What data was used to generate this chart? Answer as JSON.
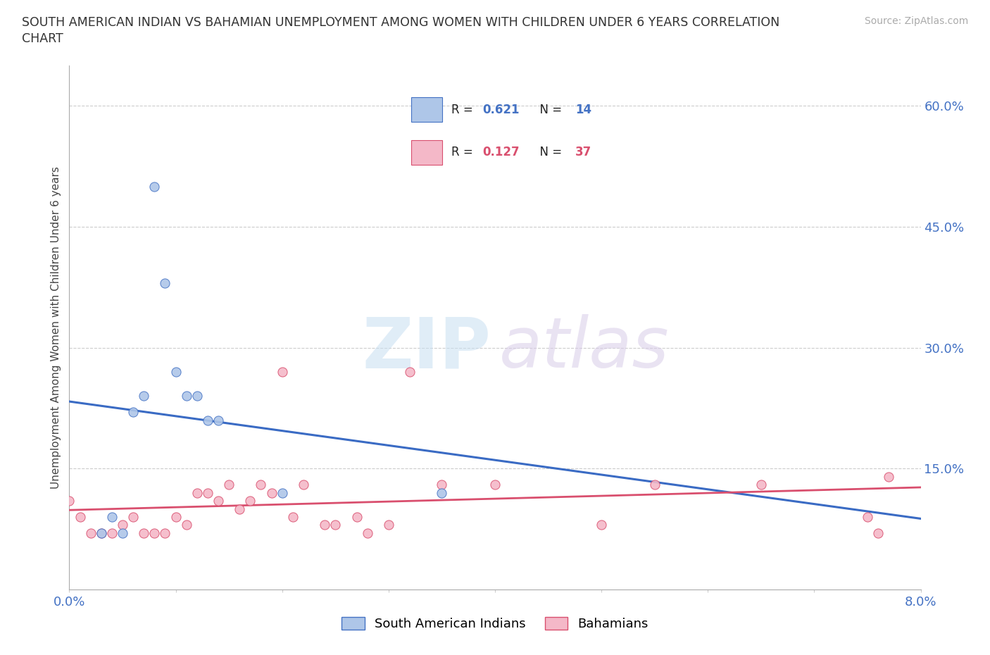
{
  "title_line1": "SOUTH AMERICAN INDIAN VS BAHAMIAN UNEMPLOYMENT AMONG WOMEN WITH CHILDREN UNDER 6 YEARS CORRELATION",
  "title_line2": "CHART",
  "source": "Source: ZipAtlas.com",
  "ylabel_label": "Unemployment Among Women with Children Under 6 years",
  "xmin": 0.0,
  "xmax": 0.08,
  "ymin": 0.0,
  "ymax": 0.65,
  "ytick_vals": [
    0.0,
    0.15,
    0.3,
    0.45,
    0.6
  ],
  "xtick_vals": [
    0.0,
    0.01,
    0.02,
    0.03,
    0.04,
    0.05,
    0.06,
    0.07,
    0.08
  ],
  "legend1_r": "0.621",
  "legend1_n": "14",
  "legend2_r": "0.127",
  "legend2_n": "37",
  "legend_label1": "South American Indians",
  "legend_label2": "Bahamians",
  "color_blue": "#aec6e8",
  "color_pink": "#f4b8c8",
  "color_blue_dark": "#4472c4",
  "color_pink_dark": "#d94f6e",
  "color_blue_line": "#3a6bc4",
  "color_pink_line": "#d94f6e",
  "color_grey_dashed": "#aaaacc",
  "background_color": "#ffffff",
  "sa_indian_x": [
    0.003,
    0.004,
    0.005,
    0.006,
    0.007,
    0.008,
    0.009,
    0.01,
    0.011,
    0.012,
    0.013,
    0.014,
    0.02,
    0.035
  ],
  "sa_indian_y": [
    0.07,
    0.09,
    0.07,
    0.22,
    0.24,
    0.5,
    0.38,
    0.27,
    0.24,
    0.24,
    0.21,
    0.21,
    0.12,
    0.12
  ],
  "bahamian_x": [
    0.0,
    0.001,
    0.002,
    0.003,
    0.004,
    0.005,
    0.006,
    0.007,
    0.008,
    0.009,
    0.01,
    0.011,
    0.012,
    0.013,
    0.014,
    0.015,
    0.016,
    0.017,
    0.018,
    0.019,
    0.02,
    0.021,
    0.022,
    0.024,
    0.025,
    0.027,
    0.028,
    0.03,
    0.032,
    0.035,
    0.04,
    0.05,
    0.055,
    0.065,
    0.075,
    0.076,
    0.077
  ],
  "bahamian_y": [
    0.11,
    0.09,
    0.07,
    0.07,
    0.07,
    0.08,
    0.09,
    0.07,
    0.07,
    0.07,
    0.09,
    0.08,
    0.12,
    0.12,
    0.11,
    0.13,
    0.1,
    0.11,
    0.13,
    0.12,
    0.27,
    0.09,
    0.13,
    0.08,
    0.08,
    0.09,
    0.07,
    0.08,
    0.27,
    0.13,
    0.13,
    0.08,
    0.13,
    0.13,
    0.09,
    0.07,
    0.14
  ]
}
